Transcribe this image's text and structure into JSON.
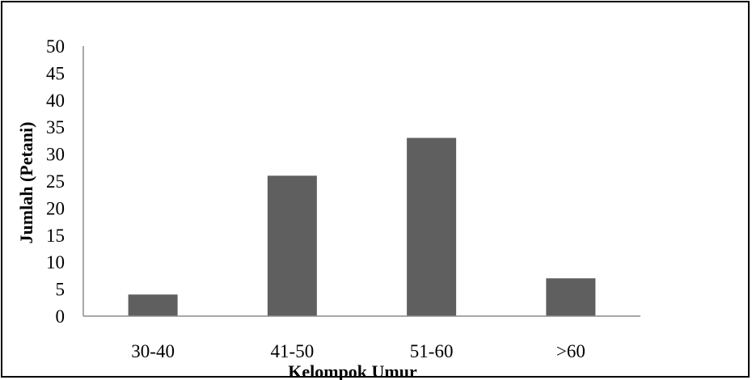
{
  "chart_data": {
    "type": "bar",
    "categories": [
      "30-40",
      "41-50",
      "51-60",
      ">60"
    ],
    "values": [
      4,
      26,
      33,
      7
    ],
    "xlabel": "Kelompok Umur",
    "ylabel": "Jumlah (Petani)",
    "ylim": [
      0,
      50
    ],
    "yticks": [
      "0",
      "5",
      "10",
      "15",
      "20",
      "25",
      "30",
      "35",
      "40",
      "45",
      "50"
    ],
    "grid": false,
    "bar_color": "#5f5f5f",
    "axis_color": "#8c8c8c"
  }
}
